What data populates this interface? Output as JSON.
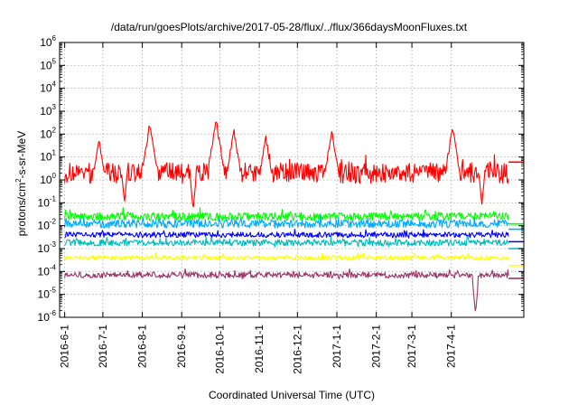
{
  "chart_data": {
    "type": "line",
    "title": "/data/run/goesPlots/archive/2017-05-28/flux/../flux/366daysMoonFluxes.txt",
    "xlabel": "Coordinated Universal Time (UTC)",
    "ylabel": "protons/cm²-s-sr-MeV",
    "ylabel_base": "protons/cm",
    "ylabel_sup": "2",
    "ylabel_rest": "-s-sr-MeV",
    "yscale": "log",
    "ylim": [
      1e-06,
      1000000.0
    ],
    "xlim": [
      "2016-05-28",
      "2017-05-28"
    ],
    "grid": true,
    "y_ticks": [
      {
        "base": "10",
        "exp": "-6",
        "value": 1e-06
      },
      {
        "base": "10",
        "exp": "-5",
        "value": 1e-05
      },
      {
        "base": "10",
        "exp": "-4",
        "value": 0.0001
      },
      {
        "base": "10",
        "exp": "-3",
        "value": 0.001
      },
      {
        "base": "10",
        "exp": "-2",
        "value": 0.01
      },
      {
        "base": "10",
        "exp": "-1",
        "value": 0.1
      },
      {
        "base": "10",
        "exp": "0",
        "value": 1
      },
      {
        "base": "10",
        "exp": "1",
        "value": 10
      },
      {
        "base": "10",
        "exp": "2",
        "value": 100
      },
      {
        "base": "10",
        "exp": "3",
        "value": 1000
      },
      {
        "base": "10",
        "exp": "4",
        "value": 10000
      },
      {
        "base": "10",
        "exp": "5",
        "value": 100000
      },
      {
        "base": "10",
        "exp": "6",
        "value": 1000000
      }
    ],
    "x_ticks": [
      "2016-6-1",
      "2016-7-1",
      "2016-8-1",
      "2016-9-1",
      "2016-10-1",
      "2016-11-1",
      "2016-12-1",
      "2017-1-1",
      "2017-2-1",
      "2017-3-1",
      "2017-4-1"
    ],
    "data_end": "2017-05-16",
    "series": [
      {
        "color": "#ff0000",
        "level": 2.0,
        "spread": 0.45,
        "last": 6,
        "peaks": [
          [
            "2016-08-07",
            300
          ],
          [
            "2016-09-28",
            400
          ],
          [
            "2016-10-12",
            150
          ],
          [
            "2016-12-28",
            150
          ],
          [
            "2017-04-02",
            200
          ],
          [
            "2016-06-28",
            60
          ],
          [
            "2016-11-06",
            80
          ]
        ],
        "dips": [
          [
            "2016-09-10",
            0.05
          ],
          [
            "2017-04-25",
            0.08
          ],
          [
            "2016-07-18",
            0.1
          ]
        ]
      },
      {
        "color": "#00ff00",
        "level": 0.025,
        "spread": 0.18,
        "last": 0.012,
        "peaks": [],
        "dips": []
      },
      {
        "color": "#00aaff",
        "level": 0.012,
        "spread": 0.18,
        "last": 0.007,
        "peaks": [],
        "dips": []
      },
      {
        "color": "#0000ff",
        "level": 0.004,
        "spread": 0.12,
        "last": 0.002,
        "peaks": [],
        "dips": []
      },
      {
        "color": "#00bbbb",
        "level": 0.0018,
        "spread": 0.14,
        "last": 0.001,
        "peaks": [],
        "dips": []
      },
      {
        "color": "#ffff00",
        "level": 0.0004,
        "spread": 0.1,
        "last": 0.00018,
        "peaks": [],
        "dips": []
      },
      {
        "color": "#993366",
        "level": 7e-05,
        "spread": 0.13,
        "last": 5e-05,
        "peaks": [],
        "dips": [
          [
            "2017-04-20",
            1.5e-06
          ]
        ]
      }
    ]
  }
}
